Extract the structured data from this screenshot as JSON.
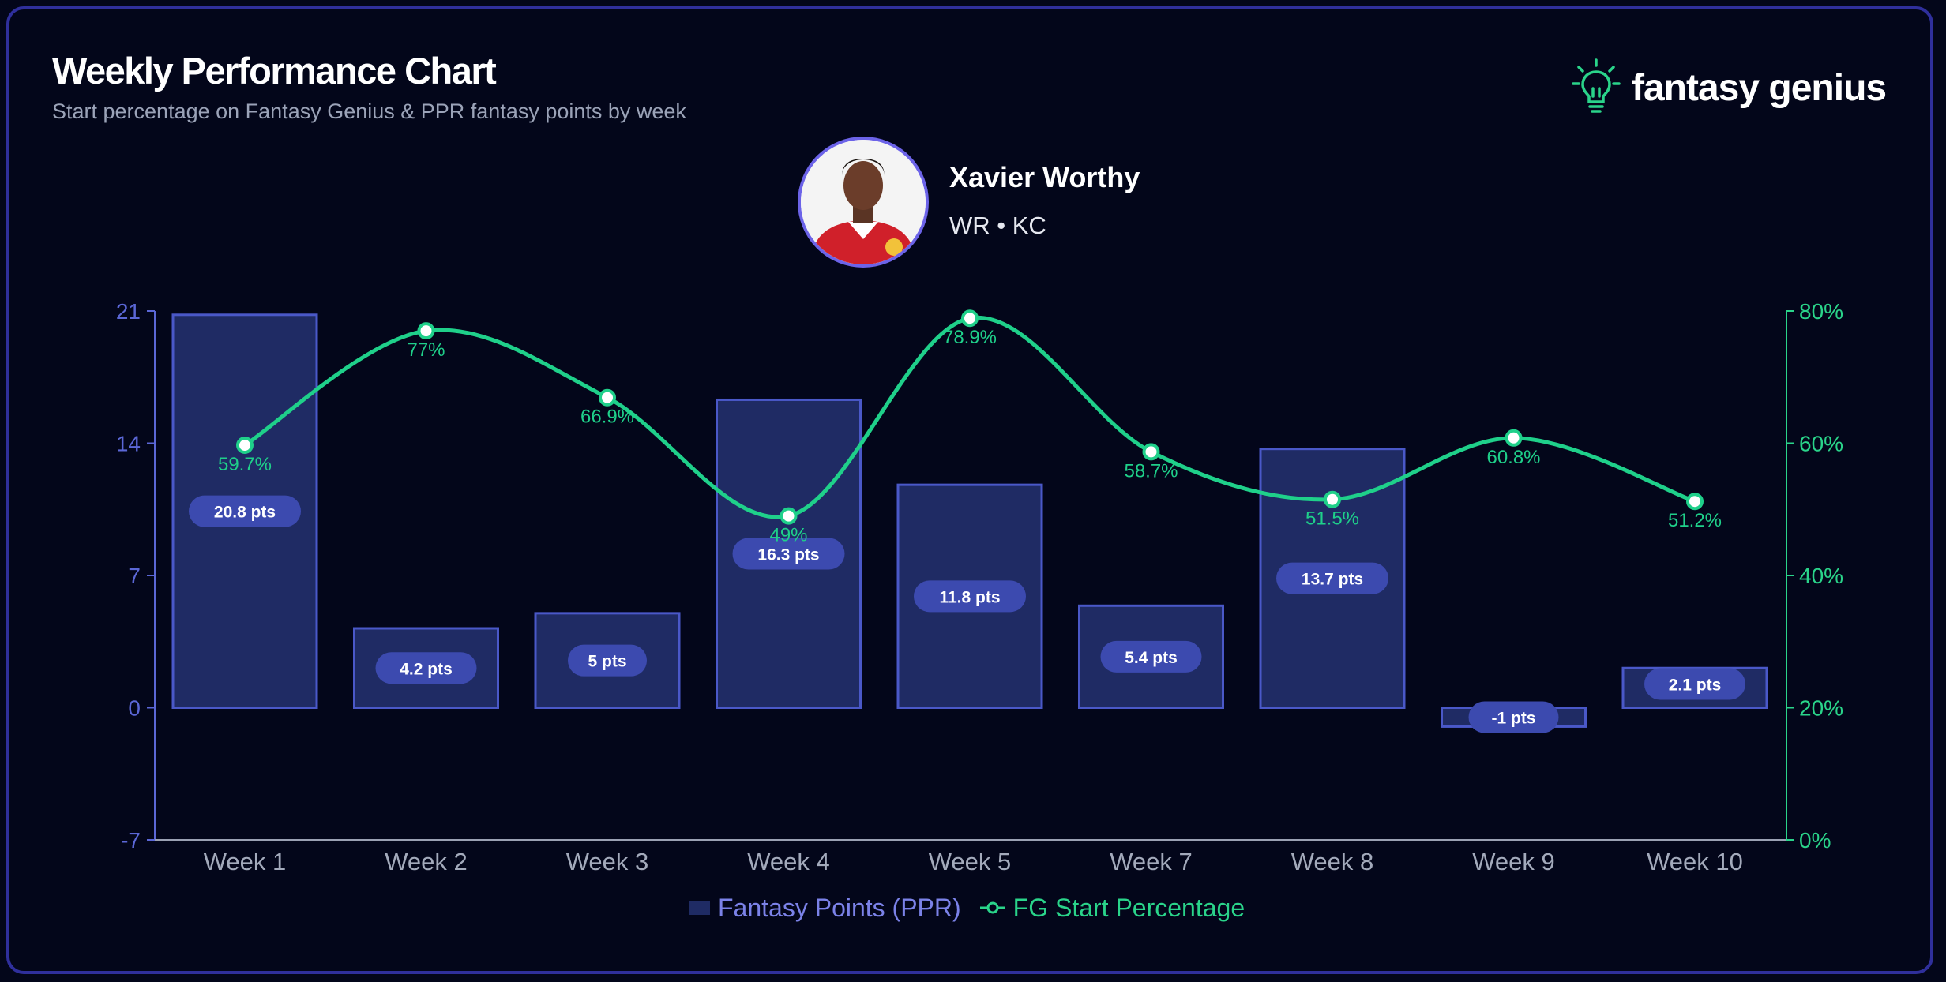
{
  "header": {
    "title": "Weekly Performance Chart",
    "subtitle": "Start percentage on Fantasy Genius & PPR fantasy points by week"
  },
  "brand": {
    "name": "fantasy genius",
    "icon": "lightbulb-icon"
  },
  "player": {
    "name": "Xavier Worthy",
    "meta": "WR • KC"
  },
  "colors": {
    "bar_fill": "#1f2b64",
    "bar_stroke": "#4a58c8",
    "pill": "#3c4aaf",
    "line": "#1fd08a",
    "left_axis": "#5b67d6",
    "right_axis": "#2ad48a",
    "x_axis_text": "#a3aabb"
  },
  "chart_data": {
    "type": "bar",
    "categories": [
      "Week 1",
      "Week 2",
      "Week 3",
      "Week 4",
      "Week 5",
      "Week 7",
      "Week 8",
      "Week 9",
      "Week 10"
    ],
    "series": [
      {
        "name": "Fantasy Points (PPR)",
        "type": "bar",
        "axis": "left",
        "values": [
          20.8,
          4.2,
          5,
          16.3,
          11.8,
          5.4,
          13.7,
          -1,
          2.1
        ],
        "labels": [
          "20.8 pts",
          "4.2 pts",
          "5 pts",
          "16.3 pts",
          "11.8 pts",
          "5.4 pts",
          "13.7 pts",
          "-1 pts",
          "2.1 pts"
        ]
      },
      {
        "name": "FG Start Percentage",
        "type": "line",
        "axis": "right",
        "values": [
          59.7,
          77,
          66.9,
          49,
          78.9,
          58.7,
          51.5,
          60.8,
          51.2
        ],
        "labels": [
          "59.7%",
          "77%",
          "66.9%",
          "49%",
          "78.9%",
          "58.7%",
          "51.5%",
          "60.8%",
          "51.2%"
        ]
      }
    ],
    "left_axis": {
      "ticks": [
        "-7",
        "0",
        "7",
        "14",
        "21"
      ],
      "range": [
        -7,
        21
      ]
    },
    "right_axis": {
      "ticks": [
        "0%",
        "20%",
        "40%",
        "60%",
        "80%"
      ],
      "range": [
        0,
        80
      ]
    },
    "legend": [
      "Fantasy Points (PPR)",
      "FG Start Percentage"
    ],
    "legend_position": "bottom-center",
    "grid": false
  }
}
